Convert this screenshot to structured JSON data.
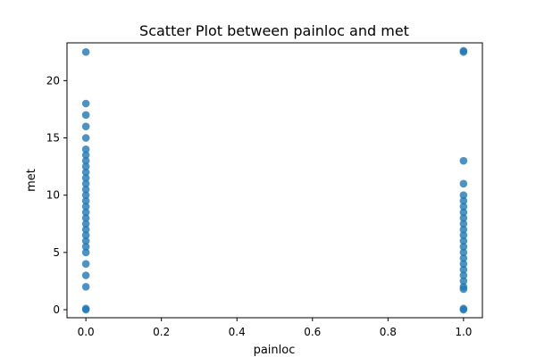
{
  "chart_data": {
    "type": "scatter",
    "title": "Scatter Plot between painloc and met",
    "xlabel": "painloc",
    "ylabel": "met",
    "xlim": [
      -0.05,
      1.05
    ],
    "ylim": [
      -0.7,
      23.3
    ],
    "xticks": [
      0.0,
      0.2,
      0.4,
      0.6,
      0.8,
      1.0
    ],
    "xtick_labels": [
      "0.0",
      "0.2",
      "0.4",
      "0.6",
      "0.8",
      "1.0"
    ],
    "yticks": [
      0,
      5,
      10,
      15,
      20
    ],
    "ytick_labels": [
      "0",
      "5",
      "10",
      "15",
      "20"
    ],
    "grid": false,
    "legend": "none",
    "color": "#1f77b4",
    "series": [
      {
        "points": [
          [
            0,
            0
          ],
          [
            0,
            0.1
          ],
          [
            0,
            2
          ],
          [
            0,
            3
          ],
          [
            0,
            4
          ],
          [
            0,
            5
          ],
          [
            0,
            5.5
          ],
          [
            0,
            6
          ],
          [
            0,
            6.5
          ],
          [
            0,
            7
          ],
          [
            0,
            7.5
          ],
          [
            0,
            8
          ],
          [
            0,
            8.5
          ],
          [
            0,
            9
          ],
          [
            0,
            9.5
          ],
          [
            0,
            10
          ],
          [
            0,
            10.5
          ],
          [
            0,
            11
          ],
          [
            0,
            11.5
          ],
          [
            0,
            12
          ],
          [
            0,
            12.5
          ],
          [
            0,
            13
          ],
          [
            0,
            13.5
          ],
          [
            0,
            14
          ],
          [
            0,
            15
          ],
          [
            0,
            16
          ],
          [
            0,
            17
          ],
          [
            0,
            18
          ],
          [
            0,
            22.5
          ],
          [
            1,
            0
          ],
          [
            1,
            0.1
          ],
          [
            1,
            1.8
          ],
          [
            1,
            2
          ],
          [
            1,
            2.5
          ],
          [
            1,
            3
          ],
          [
            1,
            3.5
          ],
          [
            1,
            4
          ],
          [
            1,
            4.5
          ],
          [
            1,
            5
          ],
          [
            1,
            5.5
          ],
          [
            1,
            6
          ],
          [
            1,
            6.5
          ],
          [
            1,
            7
          ],
          [
            1,
            7.5
          ],
          [
            1,
            8
          ],
          [
            1,
            8.5
          ],
          [
            1,
            9
          ],
          [
            1,
            9.5
          ],
          [
            1,
            10
          ],
          [
            1,
            11
          ],
          [
            1,
            13
          ],
          [
            1,
            22.5
          ],
          [
            1,
            22.6
          ]
        ]
      }
    ]
  }
}
